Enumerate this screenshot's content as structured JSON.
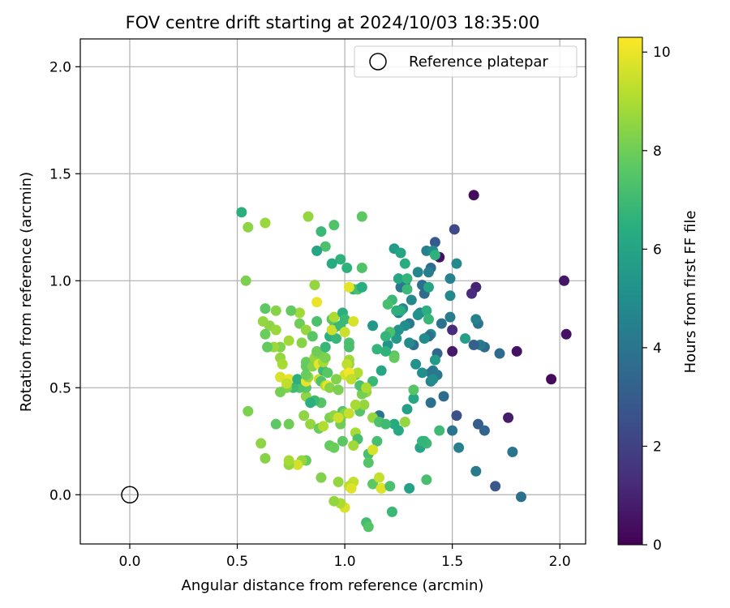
{
  "chart_data": {
    "type": "scatter",
    "title": "FOV centre drift starting at 2024/10/03 18:35:00",
    "xlabel": "Angular distance from reference (arcmin)",
    "ylabel": "Rotation from reference (arcmin)",
    "xlim": [
      -0.23,
      2.12
    ],
    "ylim": [
      -0.23,
      2.13
    ],
    "xticks": [
      0.0,
      0.5,
      1.0,
      1.5,
      2.0
    ],
    "yticks": [
      0.0,
      0.5,
      1.0,
      1.5,
      2.0
    ],
    "xtick_labels": [
      "0.0",
      "0.5",
      "1.0",
      "1.5",
      "2.0"
    ],
    "ytick_labels": [
      "0.0",
      "0.5",
      "1.0",
      "1.5",
      "2.0"
    ],
    "grid": true,
    "legend": {
      "position": "top-right",
      "label": "Reference platepar",
      "marker": "open-circle"
    },
    "reference_point": {
      "x": 0.0,
      "y": 0.0
    },
    "colorbar": {
      "label": "Hours from first FF file",
      "colormap": "viridis",
      "range": [
        0,
        10.3
      ],
      "ticks": [
        0,
        2,
        4,
        6,
        8,
        10
      ],
      "tick_labels": [
        "0",
        "2",
        "4",
        "6",
        "8",
        "10"
      ]
    },
    "points": [
      [
        1.6,
        1.4,
        0.3
      ],
      [
        2.02,
        1.0,
        0.6
      ],
      [
        2.03,
        0.75,
        0.5
      ],
      [
        1.96,
        0.54,
        0.3
      ],
      [
        1.8,
        0.67,
        0.5
      ],
      [
        1.76,
        0.36,
        0.8
      ],
      [
        1.61,
        0.97,
        1.0
      ],
      [
        1.59,
        0.94,
        1.3
      ],
      [
        1.44,
        1.11,
        0.5
      ],
      [
        1.5,
        0.67,
        0.7
      ],
      [
        1.5,
        0.77,
        1.3
      ],
      [
        1.51,
        1.24,
        2.3
      ],
      [
        1.42,
        1.18,
        2.9
      ],
      [
        1.52,
        0.37,
        2.5
      ],
      [
        1.62,
        0.33,
        3.0
      ],
      [
        1.65,
        0.3,
        3.3
      ],
      [
        1.7,
        0.04,
        2.8
      ],
      [
        1.82,
        -0.01,
        3.8
      ],
      [
        1.78,
        0.2,
        4.0
      ],
      [
        1.72,
        0.66,
        3.6
      ],
      [
        1.65,
        0.69,
        3.6
      ],
      [
        1.63,
        0.7,
        4.2
      ],
      [
        1.6,
        0.7,
        3.1
      ],
      [
        1.62,
        0.8,
        3.9
      ],
      [
        1.61,
        0.82,
        4.5
      ],
      [
        1.52,
        1.08,
        4.9
      ],
      [
        1.49,
        1.01,
        4.5
      ],
      [
        1.49,
        0.93,
        4.8
      ],
      [
        1.49,
        0.83,
        4.3
      ],
      [
        1.45,
        0.8,
        3.9
      ],
      [
        1.4,
        0.75,
        4.7
      ],
      [
        1.39,
        0.74,
        3.8
      ],
      [
        1.43,
        0.66,
        3.4
      ],
      [
        1.46,
        0.46,
        3.6
      ],
      [
        1.4,
        0.43,
        3.8
      ],
      [
        1.43,
        0.56,
        4.1
      ],
      [
        1.41,
        0.58,
        4.3
      ],
      [
        1.4,
        0.57,
        4.0
      ],
      [
        1.5,
        0.3,
        4.0
      ],
      [
        1.53,
        0.22,
        4.5
      ],
      [
        1.61,
        0.11,
        4.2
      ],
      [
        1.4,
        0.53,
        4.6
      ],
      [
        1.42,
        0.63,
        5.6
      ],
      [
        1.56,
        0.73,
        5.8
      ],
      [
        1.38,
        1.14,
        4.5
      ],
      [
        1.41,
        1.14,
        5.0
      ],
      [
        1.34,
        1.04,
        4.7
      ],
      [
        1.4,
        1.06,
        3.6
      ],
      [
        1.39,
        1.04,
        4.4
      ],
      [
        1.36,
        0.98,
        3.8
      ],
      [
        1.37,
        0.94,
        3.6
      ],
      [
        1.35,
        0.85,
        4.6
      ],
      [
        1.31,
        0.91,
        4.8
      ],
      [
        1.28,
        0.99,
        4.5
      ],
      [
        1.26,
        0.97,
        4.0
      ],
      [
        1.27,
        0.87,
        4.7
      ],
      [
        1.3,
        0.8,
        4.1
      ],
      [
        1.25,
        0.85,
        4.2
      ],
      [
        1.32,
        0.7,
        3.8
      ],
      [
        1.3,
        0.71,
        4.9
      ],
      [
        1.28,
        0.79,
        5.0
      ],
      [
        1.25,
        0.77,
        5.3
      ],
      [
        1.24,
        0.73,
        5.5
      ],
      [
        1.2,
        0.7,
        5.3
      ],
      [
        1.23,
        1.15,
        5.6
      ],
      [
        1.26,
        1.13,
        6.0
      ],
      [
        1.28,
        1.08,
        6.4
      ],
      [
        1.25,
        1.01,
        6.1
      ],
      [
        1.29,
        1.01,
        6.7
      ],
      [
        1.29,
        0.96,
        6.9
      ],
      [
        1.26,
        0.86,
        6.4
      ],
      [
        1.24,
        0.86,
        6.5
      ],
      [
        1.22,
        0.91,
        6.9
      ],
      [
        1.2,
        0.89,
        7.2
      ],
      [
        1.38,
        0.86,
        6.5
      ],
      [
        1.39,
        0.82,
        6.8
      ],
      [
        1.34,
        0.84,
        5.2
      ],
      [
        1.39,
        0.97,
        6.0
      ],
      [
        1.42,
        1.12,
        6.6
      ],
      [
        1.37,
        0.73,
        4.9
      ],
      [
        1.33,
        0.61,
        5.2
      ],
      [
        1.41,
        0.54,
        5.0
      ],
      [
        1.36,
        0.57,
        5.1
      ],
      [
        1.37,
        0.25,
        6.5
      ],
      [
        1.35,
        0.22,
        6.0
      ],
      [
        1.38,
        0.24,
        6.9
      ],
      [
        1.36,
        0.25,
        6.7
      ],
      [
        1.44,
        0.3,
        7.0
      ],
      [
        1.38,
        0.07,
        7.2
      ],
      [
        1.3,
        0.03,
        5.9
      ],
      [
        1.25,
        0.3,
        6.2
      ],
      [
        1.23,
        0.33,
        6.2
      ],
      [
        1.28,
        0.34,
        8.6
      ],
      [
        1.29,
        0.4,
        5.8
      ],
      [
        1.32,
        0.45,
        6.1
      ],
      [
        1.32,
        0.49,
        7.5
      ],
      [
        1.23,
        0.65,
        7.5
      ],
      [
        1.23,
        0.64,
        7.8
      ],
      [
        1.19,
        0.67,
        6.6
      ],
      [
        1.17,
        0.58,
        6.1
      ],
      [
        1.21,
        0.76,
        7.3
      ],
      [
        1.19,
        0.74,
        6.7
      ],
      [
        1.15,
        0.68,
        6.7
      ],
      [
        1.13,
        0.79,
        5.4
      ],
      [
        1.13,
        0.53,
        6.9
      ],
      [
        1.16,
        0.37,
        4.0
      ],
      [
        1.13,
        0.36,
        8.6
      ],
      [
        1.16,
        0.34,
        7.3
      ],
      [
        1.19,
        0.33,
        7.0
      ],
      [
        1.15,
        0.25,
        7.2
      ],
      [
        1.11,
        0.19,
        7.2
      ],
      [
        1.11,
        0.15,
        7.5
      ],
      [
        1.13,
        0.05,
        7.7
      ],
      [
        1.17,
        0.03,
        8.3
      ],
      [
        1.17,
        0.03,
        9.8
      ],
      [
        1.16,
        0.08,
        9.4
      ],
      [
        1.21,
        0.04,
        7.3
      ],
      [
        1.22,
        -0.08,
        6.9
      ],
      [
        1.1,
        -0.13,
        7.1
      ],
      [
        1.11,
        -0.15,
        7.5
      ],
      [
        1.13,
        0.21,
        9.7
      ],
      [
        1.07,
        0.39,
        7.5
      ],
      [
        1.09,
        0.42,
        8.6
      ],
      [
        1.1,
        0.48,
        8.6
      ],
      [
        1.08,
        0.47,
        8.1
      ],
      [
        1.07,
        0.51,
        7.3
      ],
      [
        1.1,
        0.5,
        9.0
      ],
      [
        1.05,
        0.56,
        7.7
      ],
      [
        1.06,
        0.57,
        9.1
      ],
      [
        1.05,
        0.29,
        8.9
      ],
      [
        1.06,
        0.26,
        7.2
      ],
      [
        1.04,
        0.23,
        8.8
      ],
      [
        1.04,
        0.06,
        9.4
      ],
      [
        1.02,
        0.04,
        9.2
      ],
      [
        1.03,
        0.03,
        9.8
      ],
      [
        1.0,
        -0.06,
        9.7
      ],
      [
        0.98,
        -0.04,
        9.0
      ],
      [
        0.95,
        -0.03,
        8.6
      ],
      [
        0.97,
        0.06,
        8.6
      ],
      [
        0.89,
        0.08,
        8.3
      ],
      [
        0.82,
        0.16,
        7.8
      ],
      [
        0.8,
        0.16,
        8.6
      ],
      [
        0.78,
        0.14,
        9.6
      ],
      [
        0.74,
        0.14,
        8.6
      ],
      [
        0.74,
        0.16,
        8.9
      ],
      [
        0.63,
        0.17,
        8.4
      ],
      [
        0.61,
        0.24,
        8.5
      ],
      [
        0.55,
        0.39,
        8.2
      ],
      [
        0.68,
        0.33,
        7.7
      ],
      [
        0.74,
        0.33,
        8.0
      ],
      [
        0.81,
        0.37,
        8.5
      ],
      [
        0.84,
        0.33,
        8.6
      ],
      [
        0.88,
        0.31,
        7.9
      ],
      [
        0.9,
        0.32,
        9.1
      ],
      [
        0.93,
        0.36,
        8.2
      ],
      [
        0.95,
        0.37,
        8.5
      ],
      [
        0.98,
        0.35,
        7.8
      ],
      [
        0.98,
        0.33,
        8.0
      ],
      [
        0.99,
        0.39,
        7.5
      ],
      [
        1.0,
        0.38,
        8.4
      ],
      [
        1.02,
        0.38,
        9.4
      ],
      [
        1.05,
        0.42,
        8.9
      ],
      [
        0.97,
        0.36,
        9.5
      ],
      [
        0.99,
        0.25,
        7.7
      ],
      [
        0.93,
        0.23,
        7.8
      ],
      [
        0.95,
        0.22,
        7.9
      ],
      [
        0.89,
        0.43,
        7.5
      ],
      [
        0.82,
        0.46,
        8.5
      ],
      [
        0.86,
        0.44,
        7.0
      ],
      [
        0.84,
        0.43,
        6.5
      ],
      [
        0.82,
        0.5,
        7.6
      ],
      [
        0.79,
        0.5,
        7.4
      ],
      [
        0.76,
        0.5,
        7.0
      ],
      [
        0.73,
        0.5,
        8.3
      ],
      [
        0.7,
        0.48,
        8.1
      ],
      [
        0.7,
        0.55,
        9.7
      ],
      [
        0.74,
        0.54,
        10.0
      ],
      [
        0.73,
        0.52,
        9.3
      ],
      [
        0.78,
        0.54,
        6.5
      ],
      [
        0.82,
        0.53,
        10.0
      ],
      [
        0.83,
        0.55,
        8.6
      ],
      [
        0.82,
        0.56,
        7.9
      ],
      [
        0.82,
        0.62,
        7.9
      ],
      [
        0.82,
        0.6,
        7.8
      ],
      [
        0.85,
        0.6,
        8.4
      ],
      [
        0.86,
        0.64,
        8.6
      ],
      [
        0.87,
        0.66,
        8.5
      ],
      [
        0.88,
        0.61,
        9.9
      ],
      [
        0.88,
        0.54,
        9.5
      ],
      [
        0.89,
        0.53,
        7.4
      ],
      [
        0.9,
        0.58,
        7.0
      ],
      [
        0.91,
        0.51,
        9.0
      ],
      [
        0.92,
        0.51,
        9.9
      ],
      [
        0.93,
        0.5,
        8.4
      ],
      [
        0.92,
        0.57,
        7.6
      ],
      [
        0.9,
        0.62,
        8.9
      ],
      [
        0.91,
        0.64,
        8.2
      ],
      [
        0.89,
        0.66,
        8.2
      ],
      [
        0.87,
        0.67,
        8.0
      ],
      [
        0.91,
        0.69,
        6.8
      ],
      [
        0.93,
        0.74,
        6.5
      ],
      [
        0.96,
        0.73,
        6.8
      ],
      [
        0.95,
        0.78,
        6.5
      ],
      [
        0.94,
        0.77,
        9.5
      ],
      [
        0.94,
        0.82,
        7.5
      ],
      [
        0.95,
        0.83,
        9.0
      ],
      [
        0.98,
        0.79,
        6.9
      ],
      [
        0.99,
        0.85,
        6.5
      ],
      [
        1.0,
        0.82,
        6.9
      ],
      [
        1.0,
        0.76,
        9.5
      ],
      [
        1.02,
        0.71,
        7.3
      ],
      [
        1.02,
        0.69,
        7.2
      ],
      [
        1.02,
        0.63,
        8.8
      ],
      [
        1.02,
        0.61,
        8.6
      ],
      [
        1.01,
        0.61,
        9.3
      ],
      [
        1.0,
        0.56,
        9.6
      ],
      [
        1.02,
        0.57,
        10.1
      ],
      [
        1.03,
        0.54,
        9.3
      ],
      [
        0.96,
        0.54,
        8.3
      ],
      [
        0.97,
        0.49,
        8.2
      ],
      [
        1.04,
        0.81,
        9.7
      ],
      [
        1.04,
        0.96,
        6.7
      ],
      [
        1.06,
        0.96,
        7.2
      ],
      [
        1.08,
        0.97,
        6.4
      ],
      [
        1.02,
        0.97,
        9.9
      ],
      [
        1.01,
        1.06,
        6.6
      ],
      [
        1.08,
        1.06,
        7.4
      ],
      [
        0.98,
        1.1,
        6.6
      ],
      [
        0.94,
        1.08,
        6.3
      ],
      [
        0.91,
        1.16,
        7.3
      ],
      [
        0.89,
        1.23,
        6.9
      ],
      [
        0.95,
        1.26,
        7.4
      ],
      [
        0.87,
        1.14,
        6.0
      ],
      [
        0.83,
        1.3,
        8.6
      ],
      [
        1.08,
        1.3,
        7.7
      ],
      [
        0.52,
        1.32,
        6.5
      ],
      [
        0.55,
        1.25,
        8.5
      ],
      [
        0.63,
        1.27,
        8.7
      ],
      [
        0.54,
        1.0,
        8.2
      ],
      [
        0.86,
        0.98,
        8.6
      ],
      [
        0.87,
        0.9,
        10.0
      ],
      [
        0.79,
        0.85,
        8.8
      ],
      [
        0.75,
        0.86,
        7.8
      ],
      [
        0.68,
        0.86,
        8.4
      ],
      [
        0.63,
        0.87,
        7.7
      ],
      [
        0.62,
        0.81,
        8.6
      ],
      [
        0.65,
        0.79,
        8.5
      ],
      [
        0.63,
        0.75,
        7.9
      ],
      [
        0.68,
        0.77,
        8.7
      ],
      [
        0.79,
        0.8,
        8.0
      ],
      [
        0.82,
        0.77,
        8.6
      ],
      [
        0.87,
        0.81,
        7.3
      ],
      [
        0.85,
        0.74,
        7.6
      ],
      [
        0.8,
        0.71,
        8.4
      ],
      [
        0.74,
        0.72,
        8.8
      ],
      [
        0.7,
        0.69,
        8.3
      ],
      [
        0.64,
        0.69,
        7.6
      ],
      [
        0.67,
        0.69,
        8.7
      ],
      [
        0.7,
        0.64,
        8.6
      ],
      [
        0.71,
        0.61,
        8.9
      ],
      [
        0.64,
        0.69,
        7.8
      ]
    ]
  }
}
